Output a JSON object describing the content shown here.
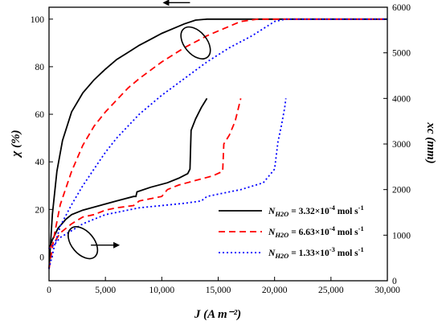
{
  "chart_data": {
    "type": "line",
    "x_axis": {
      "label": "J (A m⁻²)",
      "range": [
        0,
        30000
      ],
      "ticks": [
        0,
        5000,
        10000,
        15000,
        20000,
        25000,
        30000
      ],
      "tick_labels": [
        "0",
        "5,000",
        "10,000",
        "15,000",
        "20,000",
        "25,000",
        "30,000"
      ]
    },
    "y_axis_left": {
      "label": "χ (%)",
      "range": [
        -10,
        105
      ],
      "ticks": [
        0,
        20,
        40,
        60,
        80,
        100
      ],
      "tick_labels": [
        "0",
        "20",
        "40",
        "60",
        "80",
        "100"
      ]
    },
    "y_axis_right": {
      "label": "xc (mm)",
      "range": [
        0,
        6000
      ],
      "ticks": [
        0,
        1000,
        2000,
        3000,
        4000,
        5000,
        6000
      ],
      "tick_labels": [
        "0",
        "1000",
        "2000",
        "3000",
        "4000",
        "5000",
        "6000"
      ]
    },
    "legend": {
      "placement": "bottom-right",
      "entries": [
        {
          "base": "N",
          "sub": "H2O",
          "rest": " = 3.32×10",
          "sup": "-4",
          "unit": " mol s",
          "unit_sup": "-1"
        },
        {
          "base": "N",
          "sub": "H2O",
          "rest": " = 6.63×10",
          "sup": "-4",
          "unit": " mol s",
          "unit_sup": "-1"
        },
        {
          "base": "N",
          "sub": "H2O",
          "rest": " = 1.33×10",
          "sup": "-3",
          "unit": " mol s",
          "unit_sup": "-1"
        }
      ]
    },
    "series": [
      {
        "color": "#000000",
        "style": "solid",
        "chi": [
          [
            0,
            -5
          ],
          [
            300,
            18
          ],
          [
            700,
            36
          ],
          [
            1200,
            49
          ],
          [
            2000,
            61
          ],
          [
            3000,
            69
          ],
          [
            4000,
            74.5
          ],
          [
            5000,
            79
          ],
          [
            6000,
            83
          ],
          [
            7000,
            86
          ],
          [
            8000,
            89
          ],
          [
            9000,
            91.5
          ],
          [
            10000,
            94
          ],
          [
            11000,
            96
          ],
          [
            12000,
            98
          ],
          [
            13000,
            99.6
          ],
          [
            14000,
            100
          ],
          [
            30000,
            100
          ]
        ],
        "xc": [
          [
            0,
            700
          ],
          [
            300,
            900
          ],
          [
            800,
            1150
          ],
          [
            1500,
            1350
          ],
          [
            2000,
            1450
          ],
          [
            3000,
            1550
          ],
          [
            4500,
            1650
          ],
          [
            6000,
            1750
          ],
          [
            7500,
            1850
          ],
          [
            7700,
            1850
          ],
          [
            7800,
            1950
          ],
          [
            9000,
            2050
          ],
          [
            10500,
            2150
          ],
          [
            11500,
            2250
          ],
          [
            12300,
            2350
          ],
          [
            12500,
            2450
          ],
          [
            12600,
            3300
          ],
          [
            13000,
            3550
          ],
          [
            13500,
            3800
          ],
          [
            14000,
            4000
          ]
        ]
      },
      {
        "color": "#ff0000",
        "style": "dashed",
        "chi": [
          [
            0,
            -5
          ],
          [
            500,
            10
          ],
          [
            1000,
            22
          ],
          [
            2000,
            36
          ],
          [
            3000,
            47
          ],
          [
            4000,
            55
          ],
          [
            5000,
            61
          ],
          [
            6000,
            66
          ],
          [
            7000,
            71
          ],
          [
            8000,
            75
          ],
          [
            9000,
            78.5
          ],
          [
            10000,
            82
          ],
          [
            12000,
            88
          ],
          [
            14000,
            93
          ],
          [
            15500,
            96
          ],
          [
            17000,
            99
          ],
          [
            18500,
            100
          ],
          [
            30000,
            100
          ]
        ],
        "xc": [
          [
            0,
            700
          ],
          [
            500,
            850
          ],
          [
            1000,
            1050
          ],
          [
            2000,
            1250
          ],
          [
            3000,
            1400
          ],
          [
            4000,
            1450
          ],
          [
            5000,
            1550
          ],
          [
            6000,
            1600
          ],
          [
            7500,
            1650
          ],
          [
            8000,
            1750
          ],
          [
            9000,
            1800
          ],
          [
            10000,
            1850
          ],
          [
            10500,
            2000
          ],
          [
            11500,
            2100
          ],
          [
            13000,
            2200
          ],
          [
            14500,
            2300
          ],
          [
            15400,
            2400
          ],
          [
            15500,
            3000
          ],
          [
            16000,
            3200
          ],
          [
            16500,
            3500
          ],
          [
            16800,
            3800
          ],
          [
            17000,
            4000
          ]
        ]
      },
      {
        "color": "#0000ff",
        "style": "dotted",
        "chi": [
          [
            0,
            -5
          ],
          [
            500,
            5
          ],
          [
            1000,
            13
          ],
          [
            2000,
            22
          ],
          [
            3000,
            30
          ],
          [
            4000,
            37
          ],
          [
            5000,
            44
          ],
          [
            6000,
            50
          ],
          [
            8000,
            60
          ],
          [
            10000,
            68
          ],
          [
            12000,
            75
          ],
          [
            14000,
            82
          ],
          [
            16000,
            88
          ],
          [
            18000,
            93
          ],
          [
            20000,
            99
          ],
          [
            21000,
            100
          ],
          [
            30000,
            100
          ]
        ],
        "xc": [
          [
            0,
            700
          ],
          [
            500,
            800
          ],
          [
            1000,
            950
          ],
          [
            2000,
            1100
          ],
          [
            3000,
            1250
          ],
          [
            4000,
            1350
          ],
          [
            5000,
            1450
          ],
          [
            6000,
            1500
          ],
          [
            8000,
            1600
          ],
          [
            10000,
            1650
          ],
          [
            12000,
            1700
          ],
          [
            13500,
            1750
          ],
          [
            14000,
            1850
          ],
          [
            15000,
            1900
          ],
          [
            17000,
            2000
          ],
          [
            19000,
            2150
          ],
          [
            19500,
            2300
          ],
          [
            20000,
            2450
          ],
          [
            20300,
            3050
          ],
          [
            20600,
            3400
          ],
          [
            20900,
            3800
          ],
          [
            21000,
            4000
          ]
        ]
      }
    ],
    "annotations": [
      {
        "type": "ellipse",
        "target": "chi curves",
        "arrow": "left",
        "center": [
          13000,
          90
        ]
      },
      {
        "type": "ellipse",
        "target": "xc curves",
        "arrow": "right",
        "center": [
          3000,
          6
        ]
      }
    ]
  }
}
